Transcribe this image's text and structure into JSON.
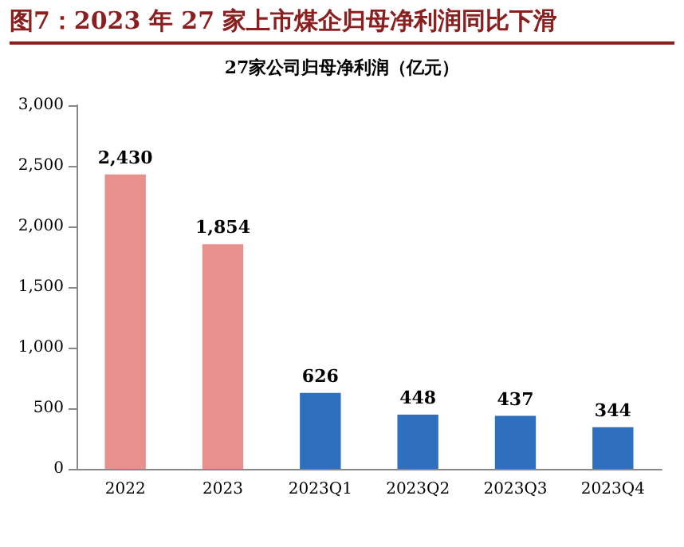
{
  "chart_data": {
    "type": "bar",
    "title": "图7：2023 年 27 家上市煤企归母净利润同比下滑",
    "subtitle": "27家公司归母净利润（亿元）",
    "categories": [
      "2022",
      "2023",
      "2023Q1",
      "2023Q2",
      "2023Q3",
      "2023Q4"
    ],
    "values": [
      2430,
      1854,
      626,
      448,
      437,
      344
    ],
    "value_labels": [
      "2,430",
      "1,854",
      "626",
      "448",
      "437",
      "344"
    ],
    "colors": [
      "#e8908c",
      "#e8908c",
      "#2e6fbe",
      "#2e6fbe",
      "#2e6fbe",
      "#2e6fbe"
    ],
    "ylim": [
      0,
      3000
    ],
    "yticks": [
      0,
      500,
      {
        "value": 1000,
        "label": "1,000"
      },
      {
        "value": 1500,
        "label": "1,500"
      },
      {
        "value": 2000,
        "label": "2,000"
      },
      {
        "value": 2500,
        "label": "2,500"
      },
      {
        "value": 3000,
        "label": "3,000"
      }
    ],
    "grid": false
  }
}
